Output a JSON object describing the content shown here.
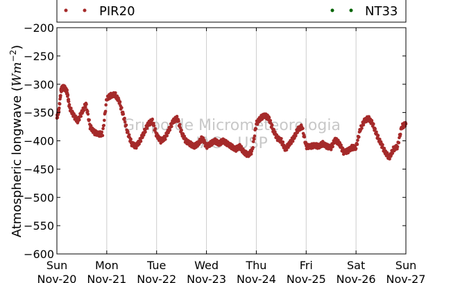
{
  "chart_data": {
    "type": "scatter",
    "title": "",
    "ylabel_text": "Atmospheric longwave (",
    "ylabel_math": "Wm",
    "ylabel_exp": "−2",
    "ylabel_close": ")",
    "ylim": [
      -600,
      -200
    ],
    "yticks": [
      -200,
      -250,
      -300,
      -350,
      -400,
      -450,
      -500,
      -550,
      -600
    ],
    "ytick_labels": [
      "−200",
      "−250",
      "−300",
      "−350",
      "−400",
      "−450",
      "−500",
      "−550",
      "−600"
    ],
    "xlim": [
      "2016-11-20",
      "2016-11-27"
    ],
    "xticks": [
      {
        "day": "Sun",
        "date": "Nov-20"
      },
      {
        "day": "Mon",
        "date": "Nov-21"
      },
      {
        "day": "Tue",
        "date": "Nov-22"
      },
      {
        "day": "Wed",
        "date": "Nov-23"
      },
      {
        "day": "Thu",
        "date": "Nov-24"
      },
      {
        "day": "Fri",
        "date": "Nov-25"
      },
      {
        "day": "Sat",
        "date": "Nov-26"
      },
      {
        "day": "Sun",
        "date": "Nov-27"
      }
    ],
    "grid": "vertical",
    "legend_placement": "top",
    "series": [
      {
        "name": "PIR20",
        "color": "#a52a2a",
        "x": [
          "2016-11-20 00:00",
          "2016-11-20 01:00",
          "2016-11-20 02:00",
          "2016-11-20 03:00",
          "2016-11-20 04:00",
          "2016-11-20 05:00",
          "2016-11-20 06:00",
          "2016-11-20 08:00",
          "2016-11-20 10:00",
          "2016-11-20 12:00",
          "2016-11-20 14:00",
          "2016-11-20 16:00",
          "2016-11-20 18:00",
          "2016-11-20 20:00",
          "2016-11-20 22:00",
          "2016-11-21 00:00",
          "2016-11-21 02:00",
          "2016-11-21 04:00",
          "2016-11-21 06:00",
          "2016-11-21 08:00",
          "2016-11-21 10:00",
          "2016-11-21 12:00",
          "2016-11-21 14:00",
          "2016-11-21 16:00",
          "2016-11-21 18:00",
          "2016-11-21 20:00",
          "2016-11-21 22:00",
          "2016-11-22 00:00",
          "2016-11-22 02:00",
          "2016-11-22 04:00",
          "2016-11-22 06:00",
          "2016-11-22 08:00",
          "2016-11-22 10:00",
          "2016-11-22 12:00",
          "2016-11-22 14:00",
          "2016-11-22 16:00",
          "2016-11-22 18:00",
          "2016-11-22 20:00",
          "2016-11-22 22:00",
          "2016-11-23 00:00",
          "2016-11-23 02:00",
          "2016-11-23 04:00",
          "2016-11-23 06:00",
          "2016-11-23 08:00",
          "2016-11-23 10:00",
          "2016-11-23 12:00",
          "2016-11-23 14:00",
          "2016-11-23 16:00",
          "2016-11-23 18:00",
          "2016-11-23 20:00",
          "2016-11-23 22:00",
          "2016-11-24 00:00",
          "2016-11-24 02:00",
          "2016-11-24 04:00",
          "2016-11-24 06:00",
          "2016-11-24 08:00",
          "2016-11-24 10:00",
          "2016-11-24 12:00",
          "2016-11-24 14:00",
          "2016-11-24 16:00",
          "2016-11-24 18:00",
          "2016-11-24 20:00",
          "2016-11-24 22:00",
          "2016-11-25 00:00",
          "2016-11-25 02:00",
          "2016-11-25 04:00",
          "2016-11-25 06:00",
          "2016-11-25 08:00",
          "2016-11-25 10:00",
          "2016-11-25 12:00",
          "2016-11-25 14:00",
          "2016-11-25 16:00",
          "2016-11-25 18:00",
          "2016-11-25 20:00",
          "2016-11-25 22:00",
          "2016-11-26 00:00",
          "2016-11-26 02:00",
          "2016-11-26 04:00",
          "2016-11-26 06:00",
          "2016-11-26 08:00",
          "2016-11-26 10:00",
          "2016-11-26 12:00",
          "2016-11-26 14:00",
          "2016-11-26 16:00",
          "2016-11-26 18:00",
          "2016-11-26 20:00",
          "2016-11-26 22:00",
          "2016-11-27 00:00"
        ],
        "y": [
          -360,
          -345,
          -310,
          -305,
          -308,
          -315,
          -340,
          -355,
          -365,
          -350,
          -335,
          -375,
          -385,
          -388,
          -388,
          -325,
          -320,
          -318,
          -330,
          -355,
          -385,
          -405,
          -410,
          -400,
          -385,
          -370,
          -365,
          -390,
          -400,
          -395,
          -380,
          -365,
          -360,
          -385,
          -400,
          -405,
          -410,
          -405,
          -395,
          -410,
          -405,
          -400,
          -405,
          -400,
          -405,
          -410,
          -415,
          -410,
          -420,
          -425,
          -418,
          -370,
          -360,
          -355,
          -360,
          -380,
          -395,
          -400,
          -415,
          -405,
          -395,
          -380,
          -375,
          -410,
          -410,
          -408,
          -410,
          -405,
          -410,
          -412,
          -398,
          -405,
          -420,
          -418,
          -412,
          -412,
          -380,
          -365,
          -360,
          -370,
          -390,
          -405,
          -420,
          -430,
          -415,
          -410,
          -375,
          -370
        ]
      },
      {
        "name": "NT33",
        "color": "#006400",
        "x": [],
        "y": []
      }
    ],
    "watermark_line1": "Grupo de Micrometeorologia",
    "watermark_line2": "IAG - USP"
  }
}
